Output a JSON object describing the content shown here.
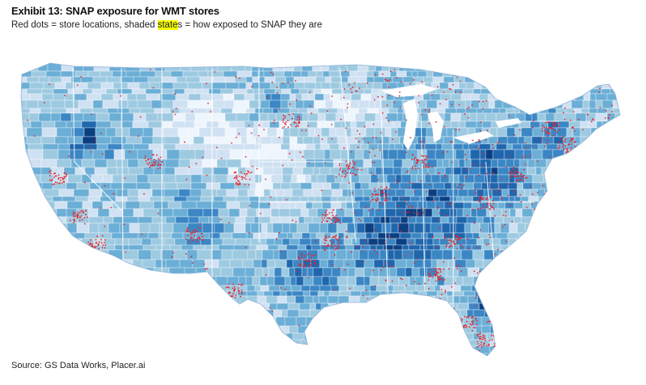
{
  "header": {
    "title": "Exhibit 13: SNAP exposure for WMT stores",
    "subtitle_pre": "Red dots = store locations, shaded ",
    "subtitle_highlight": "state",
    "subtitle_post": "s = how exposed to SNAP they are"
  },
  "footer": {
    "source": "Source: GS Data Works, Placer.ai"
  },
  "map": {
    "region": "Contiguous United States",
    "palette": [
      "#eef5fc",
      "#cfe1f2",
      "#9ecae1",
      "#6baed6",
      "#3b86c4",
      "#1f66ad",
      "#0b3f82"
    ],
    "dot_color": "#e8232b",
    "highlight_color": "#f6ff00"
  }
}
